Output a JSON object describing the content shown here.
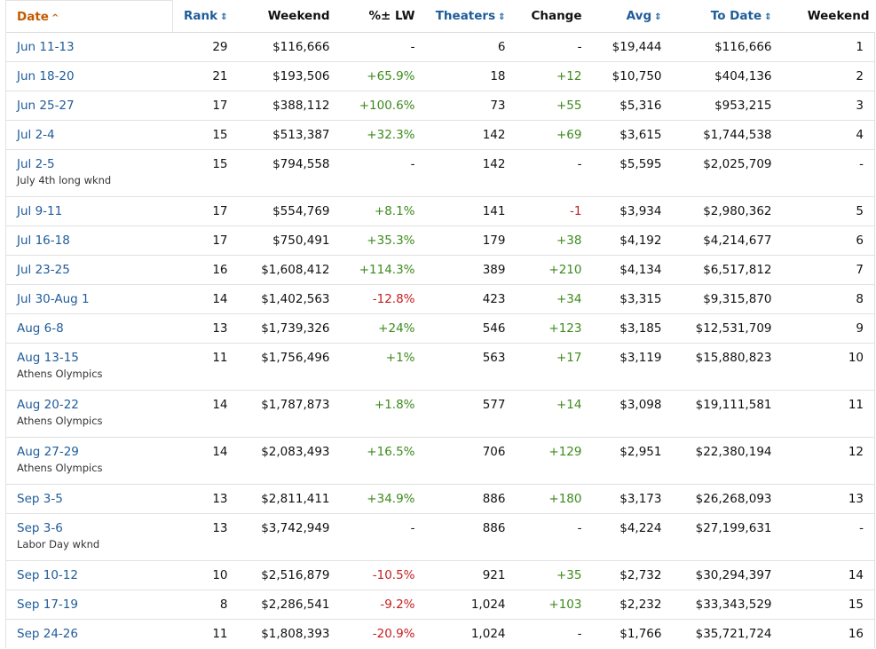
{
  "colors": {
    "link": "#1f5c99",
    "active_sort": "#c25b00",
    "positive": "#3d8a1d",
    "negative": "#c41e1e"
  },
  "columns": [
    {
      "key": "date",
      "label": "Date",
      "sortable": true,
      "active": true,
      "indicator": "^"
    },
    {
      "key": "rank",
      "label": "Rank",
      "sortable": true,
      "indicator": "⇕"
    },
    {
      "key": "weekend",
      "label": "Weekend",
      "sortable": false
    },
    {
      "key": "pct_lw",
      "label": "%± LW",
      "sortable": false
    },
    {
      "key": "theaters",
      "label": "Theaters",
      "sortable": true,
      "indicator": "⇕"
    },
    {
      "key": "change",
      "label": "Change",
      "sortable": false
    },
    {
      "key": "avg",
      "label": "Avg",
      "sortable": true,
      "indicator": "⇕"
    },
    {
      "key": "to_date",
      "label": "To Date",
      "sortable": true,
      "indicator": "⇕"
    },
    {
      "key": "week_num",
      "label": "Weekend",
      "sortable": false
    }
  ],
  "rows": [
    {
      "date": "Jun 11-13",
      "note": "",
      "rank": "29",
      "weekend": "$116,666",
      "pct_lw": "-",
      "pct_sign": "none",
      "theaters": "6",
      "change": "-",
      "change_sign": "none",
      "avg": "$19,444",
      "to_date": "$116,666",
      "week_num": "1"
    },
    {
      "date": "Jun 18-20",
      "note": "",
      "rank": "21",
      "weekend": "$193,506",
      "pct_lw": "+65.9%",
      "pct_sign": "pos",
      "theaters": "18",
      "change": "+12",
      "change_sign": "pos",
      "avg": "$10,750",
      "to_date": "$404,136",
      "week_num": "2"
    },
    {
      "date": "Jun 25-27",
      "note": "",
      "rank": "17",
      "weekend": "$388,112",
      "pct_lw": "+100.6%",
      "pct_sign": "pos",
      "theaters": "73",
      "change": "+55",
      "change_sign": "pos",
      "avg": "$5,316",
      "to_date": "$953,215",
      "week_num": "3"
    },
    {
      "date": "Jul 2-4",
      "note": "",
      "rank": "15",
      "weekend": "$513,387",
      "pct_lw": "+32.3%",
      "pct_sign": "pos",
      "theaters": "142",
      "change": "+69",
      "change_sign": "pos",
      "avg": "$3,615",
      "to_date": "$1,744,538",
      "week_num": "4"
    },
    {
      "date": "Jul 2-5",
      "note": "July 4th long wknd",
      "rank": "15",
      "weekend": "$794,558",
      "pct_lw": "-",
      "pct_sign": "none",
      "theaters": "142",
      "change": "-",
      "change_sign": "none",
      "avg": "$5,595",
      "to_date": "$2,025,709",
      "week_num": "-"
    },
    {
      "date": "Jul 9-11",
      "note": "",
      "rank": "17",
      "weekend": "$554,769",
      "pct_lw": "+8.1%",
      "pct_sign": "pos",
      "theaters": "141",
      "change": "-1",
      "change_sign": "neg",
      "avg": "$3,934",
      "to_date": "$2,980,362",
      "week_num": "5"
    },
    {
      "date": "Jul 16-18",
      "note": "",
      "rank": "17",
      "weekend": "$750,491",
      "pct_lw": "+35.3%",
      "pct_sign": "pos",
      "theaters": "179",
      "change": "+38",
      "change_sign": "pos",
      "avg": "$4,192",
      "to_date": "$4,214,677",
      "week_num": "6"
    },
    {
      "date": "Jul 23-25",
      "note": "",
      "rank": "16",
      "weekend": "$1,608,412",
      "pct_lw": "+114.3%",
      "pct_sign": "pos",
      "theaters": "389",
      "change": "+210",
      "change_sign": "pos",
      "avg": "$4,134",
      "to_date": "$6,517,812",
      "week_num": "7"
    },
    {
      "date": "Jul 30-Aug 1",
      "note": "",
      "rank": "14",
      "weekend": "$1,402,563",
      "pct_lw": "-12.8%",
      "pct_sign": "neg",
      "theaters": "423",
      "change": "+34",
      "change_sign": "pos",
      "avg": "$3,315",
      "to_date": "$9,315,870",
      "week_num": "8"
    },
    {
      "date": "Aug 6-8",
      "note": "",
      "rank": "13",
      "weekend": "$1,739,326",
      "pct_lw": "+24%",
      "pct_sign": "pos",
      "theaters": "546",
      "change": "+123",
      "change_sign": "pos",
      "avg": "$3,185",
      "to_date": "$12,531,709",
      "week_num": "9"
    },
    {
      "date": "Aug 13-15",
      "note": "Athens Olympics",
      "rank": "11",
      "weekend": "$1,756,496",
      "pct_lw": "+1%",
      "pct_sign": "pos",
      "theaters": "563",
      "change": "+17",
      "change_sign": "pos",
      "avg": "$3,119",
      "to_date": "$15,880,823",
      "week_num": "10"
    },
    {
      "date": "Aug 20-22",
      "note": "Athens Olympics",
      "rank": "14",
      "weekend": "$1,787,873",
      "pct_lw": "+1.8%",
      "pct_sign": "pos",
      "theaters": "577",
      "change": "+14",
      "change_sign": "pos",
      "avg": "$3,098",
      "to_date": "$19,111,581",
      "week_num": "11"
    },
    {
      "date": "Aug 27-29",
      "note": "Athens Olympics",
      "rank": "14",
      "weekend": "$2,083,493",
      "pct_lw": "+16.5%",
      "pct_sign": "pos",
      "theaters": "706",
      "change": "+129",
      "change_sign": "pos",
      "avg": "$2,951",
      "to_date": "$22,380,194",
      "week_num": "12"
    },
    {
      "date": "Sep 3-5",
      "note": "",
      "rank": "13",
      "weekend": "$2,811,411",
      "pct_lw": "+34.9%",
      "pct_sign": "pos",
      "theaters": "886",
      "change": "+180",
      "change_sign": "pos",
      "avg": "$3,173",
      "to_date": "$26,268,093",
      "week_num": "13"
    },
    {
      "date": "Sep 3-6",
      "note": "Labor Day wknd",
      "rank": "13",
      "weekend": "$3,742,949",
      "pct_lw": "-",
      "pct_sign": "none",
      "theaters": "886",
      "change": "-",
      "change_sign": "none",
      "avg": "$4,224",
      "to_date": "$27,199,631",
      "week_num": "-"
    },
    {
      "date": "Sep 10-12",
      "note": "",
      "rank": "10",
      "weekend": "$2,516,879",
      "pct_lw": "-10.5%",
      "pct_sign": "neg",
      "theaters": "921",
      "change": "+35",
      "change_sign": "pos",
      "avg": "$2,732",
      "to_date": "$30,294,397",
      "week_num": "14"
    },
    {
      "date": "Sep 17-19",
      "note": "",
      "rank": "8",
      "weekend": "$2,286,541",
      "pct_lw": "-9.2%",
      "pct_sign": "neg",
      "theaters": "1,024",
      "change": "+103",
      "change_sign": "pos",
      "avg": "$2,232",
      "to_date": "$33,343,529",
      "week_num": "15"
    },
    {
      "date": "Sep 24-26",
      "note": "",
      "rank": "11",
      "weekend": "$1,808,393",
      "pct_lw": "-20.9%",
      "pct_sign": "neg",
      "theaters": "1,024",
      "change": "-",
      "change_sign": "none",
      "avg": "$1,766",
      "to_date": "$35,721,724",
      "week_num": "16"
    }
  ]
}
